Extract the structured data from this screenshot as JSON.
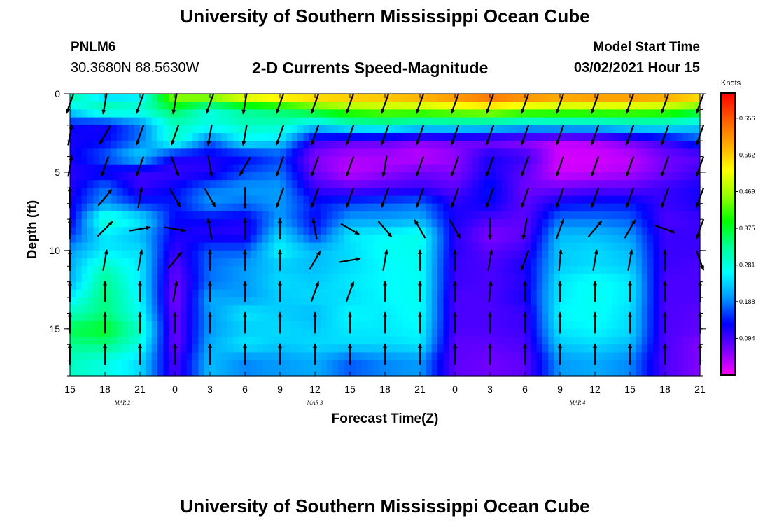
{
  "header": {
    "title": "University of Southern Mississippi Ocean Cube",
    "station": "PNLM6",
    "coordinates": "30.3680N 88.5630W",
    "subtitle": "2-D Currents Speed-Magnitude",
    "start_label": "Model Start Time",
    "start_value": "03/02/2021 Hour 15"
  },
  "footer": {
    "title": "University of Southern Mississippi Ocean Cube"
  },
  "chart_data": {
    "type": "heatmap",
    "title": "2-D Currents Speed-Magnitude",
    "xlabel": "Forecast Time(Z)",
    "ylabel": "Depth (ft)",
    "x_tick_labels": [
      "15",
      "18",
      "21",
      "0",
      "3",
      "6",
      "9",
      "12",
      "15",
      "18",
      "21",
      "0",
      "3",
      "6",
      "9",
      "12",
      "15",
      "18",
      "21"
    ],
    "x_tick_hours": [
      0,
      3,
      6,
      9,
      12,
      15,
      18,
      21,
      24,
      27,
      30,
      33,
      36,
      39,
      42,
      45,
      48,
      51,
      54
    ],
    "date_labels": [
      {
        "text": "MAR 2",
        "hour": 4.5
      },
      {
        "text": "MAR 3",
        "hour": 21
      },
      {
        "text": "MAR 4",
        "hour": 43.5
      }
    ],
    "x_range_hours": [
      0,
      54
    ],
    "y_tick_labels": [
      "0",
      "5",
      "10",
      "15"
    ],
    "y_ticks": [
      0,
      5,
      10,
      15
    ],
    "ylim": [
      0,
      18
    ],
    "y_inverted": true,
    "y_minor_step": 1,
    "colorbar_unit": "Knots",
    "colorbar_ticks": [
      "0.656",
      "0.562",
      "0.469",
      "0.375",
      "0.281",
      "0.188",
      "0.094"
    ],
    "colorbar_tick_values": [
      0.656,
      0.562,
      0.469,
      0.375,
      0.281,
      0.188,
      0.094
    ],
    "color_range": [
      0,
      0.72
    ],
    "colormap": [
      "#ff00ff",
      "#7800ff",
      "#0000ff",
      "#0096ff",
      "#00ffff",
      "#00ff96",
      "#00ff00",
      "#96ff00",
      "#ffff00",
      "#ffaa00",
      "#ff5a00",
      "#ff0000"
    ],
    "depths_ft": [
      0,
      1,
      2,
      3,
      4,
      5,
      6,
      7,
      8,
      9,
      10,
      11,
      12,
      13,
      14,
      15,
      16,
      17
    ],
    "times_hours": [
      0,
      3,
      6,
      9,
      12,
      15,
      18,
      21,
      24,
      27,
      30,
      33,
      36,
      39,
      42,
      45,
      48,
      51,
      54
    ],
    "speed_knots": [
      [
        0.33,
        0.25,
        0.13,
        0.12,
        0.12,
        0.11,
        0.11,
        0.12,
        0.12,
        0.15,
        0.2,
        0.21,
        0.21,
        0.25,
        0.3,
        0.36,
        0.33,
        0.3
      ],
      [
        0.22,
        0.33,
        0.12,
        0.13,
        0.17,
        0.12,
        0.18,
        0.2,
        0.3,
        0.25,
        0.25,
        0.3,
        0.33,
        0.34,
        0.34,
        0.38,
        0.34,
        0.28
      ],
      [
        0.24,
        0.3,
        0.18,
        0.18,
        0.24,
        0.1,
        0.1,
        0.15,
        0.25,
        0.22,
        0.24,
        0.25,
        0.25,
        0.26,
        0.27,
        0.3,
        0.28,
        0.24
      ],
      [
        0.48,
        0.36,
        0.3,
        0.3,
        0.12,
        0.1,
        0.13,
        0.14,
        0.13,
        0.12,
        0.1,
        0.08,
        0.07,
        0.06,
        0.07,
        0.07,
        0.07,
        0.09
      ],
      [
        0.5,
        0.28,
        0.28,
        0.17,
        0.12,
        0.11,
        0.18,
        0.2,
        0.13,
        0.11,
        0.17,
        0.18,
        0.18,
        0.21,
        0.2,
        0.2,
        0.21,
        0.22
      ],
      [
        0.56,
        0.33,
        0.3,
        0.26,
        0.13,
        0.16,
        0.2,
        0.18,
        0.12,
        0.11,
        0.17,
        0.2,
        0.2,
        0.2,
        0.25,
        0.23,
        0.25,
        0.19
      ],
      [
        0.59,
        0.35,
        0.3,
        0.24,
        0.16,
        0.18,
        0.2,
        0.2,
        0.2,
        0.24,
        0.26,
        0.23,
        0.24,
        0.23,
        0.23,
        0.24,
        0.23,
        0.2
      ],
      [
        0.6,
        0.4,
        0.24,
        0.1,
        0.06,
        0.07,
        0.1,
        0.14,
        0.13,
        0.15,
        0.22,
        0.22,
        0.23,
        0.24,
        0.22,
        0.23,
        0.24,
        0.21
      ],
      [
        0.6,
        0.44,
        0.29,
        0.08,
        0.04,
        0.03,
        0.08,
        0.16,
        0.2,
        0.25,
        0.24,
        0.24,
        0.25,
        0.24,
        0.26,
        0.25,
        0.24,
        0.17
      ],
      [
        0.6,
        0.46,
        0.3,
        0.08,
        0.04,
        0.05,
        0.09,
        0.17,
        0.2,
        0.26,
        0.27,
        0.26,
        0.26,
        0.26,
        0.25,
        0.25,
        0.24,
        0.19
      ],
      [
        0.62,
        0.46,
        0.27,
        0.06,
        0.03,
        0.07,
        0.1,
        0.18,
        0.21,
        0.28,
        0.27,
        0.27,
        0.27,
        0.27,
        0.27,
        0.26,
        0.25,
        0.2
      ],
      [
        0.64,
        0.48,
        0.27,
        0.07,
        0.05,
        0.06,
        0.08,
        0.11,
        0.12,
        0.11,
        0.11,
        0.1,
        0.1,
        0.09,
        0.09,
        0.09,
        0.08,
        0.08
      ],
      [
        0.67,
        0.5,
        0.26,
        0.06,
        0.12,
        0.12,
        0.14,
        0.13,
        0.09,
        0.06,
        0.08,
        0.09,
        0.09,
        0.09,
        0.09,
        0.09,
        0.08,
        0.07
      ],
      [
        0.65,
        0.47,
        0.24,
        0.05,
        0.1,
        0.08,
        0.07,
        0.08,
        0.08,
        0.08,
        0.1,
        0.12,
        0.11,
        0.12,
        0.1,
        0.1,
        0.09,
        0.08
      ],
      [
        0.63,
        0.46,
        0.25,
        0.03,
        0.02,
        0.02,
        0.07,
        0.13,
        0.18,
        0.22,
        0.23,
        0.23,
        0.25,
        0.25,
        0.26,
        0.25,
        0.23,
        0.2
      ],
      [
        0.64,
        0.46,
        0.25,
        0.04,
        0.02,
        0.03,
        0.08,
        0.14,
        0.18,
        0.22,
        0.24,
        0.24,
        0.27,
        0.27,
        0.27,
        0.26,
        0.24,
        0.21
      ],
      [
        0.64,
        0.46,
        0.27,
        0.07,
        0.03,
        0.04,
        0.08,
        0.14,
        0.17,
        0.2,
        0.22,
        0.23,
        0.25,
        0.25,
        0.24,
        0.24,
        0.22,
        0.19
      ],
      [
        0.63,
        0.45,
        0.27,
        0.1,
        0.07,
        0.07,
        0.1,
        0.1,
        0.09,
        0.1,
        0.1,
        0.1,
        0.09,
        0.09,
        0.09,
        0.09,
        0.09,
        0.09
      ],
      [
        0.6,
        0.4,
        0.24,
        0.16,
        0.08,
        0.1,
        0.12,
        0.12,
        0.1,
        0.1,
        0.1,
        0.09,
        0.09,
        0.09,
        0.08,
        0.08,
        0.06,
        0.06
      ]
    ],
    "direction_deg": [
      [
        200,
        340,
        10,
        10,
        10,
        0,
        0,
        0,
        0,
        0,
        0,
        0,
        0,
        0,
        0,
        0,
        0,
        0
      ],
      [
        190,
        200,
        210,
        200,
        200,
        30,
        40,
        30,
        45,
        60,
        10,
        5,
        0,
        0,
        0,
        0,
        0,
        0
      ],
      [
        200,
        190,
        200,
        200,
        200,
        350,
        10,
        20,
        80,
        20,
        10,
        5,
        0,
        0,
        0,
        0,
        0,
        0
      ],
      [
        190,
        190,
        200,
        210,
        160,
        210,
        150,
        150,
        100,
        80,
        40,
        20,
        10,
        5,
        0,
        0,
        0,
        0
      ],
      [
        200,
        200,
        190,
        180,
        170,
        160,
        150,
        45,
        350,
        340,
        0,
        0,
        0,
        0,
        0,
        0,
        0,
        0
      ],
      [
        190,
        200,
        190,
        190,
        210,
        190,
        180,
        200,
        0,
        0,
        0,
        0,
        0,
        0,
        0,
        0,
        0,
        0
      ],
      [
        200,
        200,
        200,
        190,
        200,
        200,
        200,
        200,
        0,
        0,
        0,
        0,
        0,
        0,
        0,
        0,
        0,
        0
      ],
      [
        200,
        200,
        200,
        200,
        200,
        200,
        200,
        200,
        350,
        20,
        30,
        20,
        20,
        10,
        0,
        0,
        0,
        0
      ],
      [
        200,
        200,
        200,
        190,
        200,
        200,
        200,
        200,
        120,
        90,
        80,
        25,
        20,
        10,
        0,
        0,
        0,
        0
      ],
      [
        200,
        200,
        200,
        200,
        190,
        200,
        200,
        210,
        140,
        120,
        10,
        0,
        0,
        0,
        0,
        0,
        0,
        0
      ],
      [
        200,
        200,
        200,
        200,
        200,
        200,
        200,
        200,
        330,
        340,
        0,
        0,
        0,
        0,
        0,
        0,
        0,
        0
      ],
      [
        200,
        200,
        200,
        200,
        200,
        200,
        200,
        200,
        150,
        140,
        0,
        0,
        0,
        0,
        0,
        0,
        0,
        0
      ],
      [
        200,
        200,
        200,
        200,
        200,
        200,
        200,
        200,
        180,
        170,
        10,
        15,
        5,
        0,
        0,
        0,
        0,
        0
      ],
      [
        200,
        200,
        200,
        200,
        200,
        200,
        200,
        200,
        190,
        210,
        200,
        0,
        0,
        0,
        0,
        0,
        0,
        0
      ],
      [
        200,
        200,
        200,
        200,
        200,
        200,
        200,
        30,
        20,
        10,
        5,
        0,
        0,
        0,
        0,
        0,
        0,
        0
      ],
      [
        200,
        200,
        200,
        200,
        200,
        200,
        200,
        30,
        40,
        20,
        10,
        0,
        0,
        0,
        0,
        0,
        0,
        0
      ],
      [
        200,
        200,
        200,
        200,
        200,
        200,
        200,
        30,
        30,
        25,
        10,
        0,
        0,
        0,
        0,
        0,
        0,
        0
      ],
      [
        200,
        200,
        200,
        200,
        200,
        200,
        200,
        120,
        110,
        20,
        0,
        0,
        0,
        0,
        0,
        0,
        0,
        0
      ],
      [
        200,
        200,
        200,
        200,
        200,
        200,
        200,
        200,
        200,
        190,
        160,
        0,
        0,
        0,
        0,
        0,
        0,
        0
      ]
    ]
  }
}
